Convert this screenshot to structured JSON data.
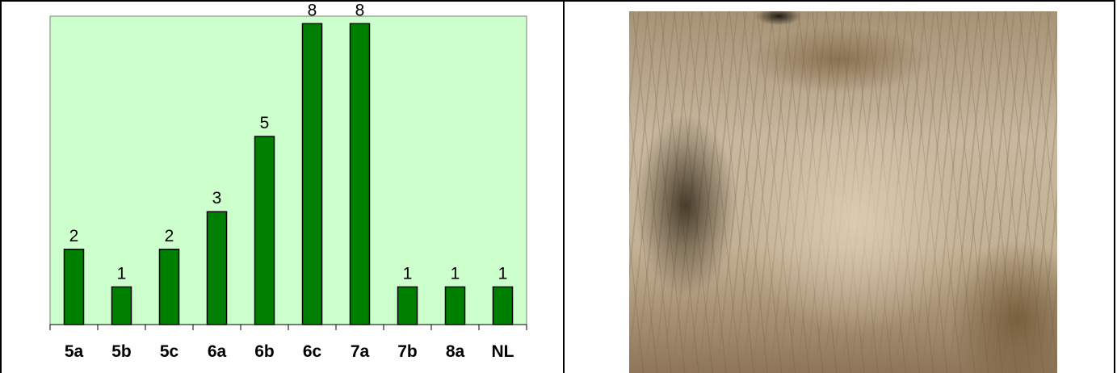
{
  "chart_data": {
    "type": "bar",
    "categories": [
      "5a",
      "5b",
      "5c",
      "6a",
      "6b",
      "6c",
      "7a",
      "7b",
      "8a",
      "NL"
    ],
    "values": [
      2,
      1,
      2,
      3,
      5,
      8,
      8,
      1,
      1,
      1
    ],
    "title": "",
    "xlabel": "",
    "ylabel": "",
    "ylim": [
      0,
      8.2
    ],
    "data_labels": [
      "2",
      "1",
      "2",
      "3",
      "5",
      "8",
      "8",
      "1",
      "1",
      "1"
    ],
    "grid": false,
    "legend": "none",
    "colors": {
      "bar": "#008000",
      "bar_outline": "#000000",
      "plot_background": "#ccffcc"
    }
  },
  "photo": {
    "subject": "rock-cliff-face"
  }
}
